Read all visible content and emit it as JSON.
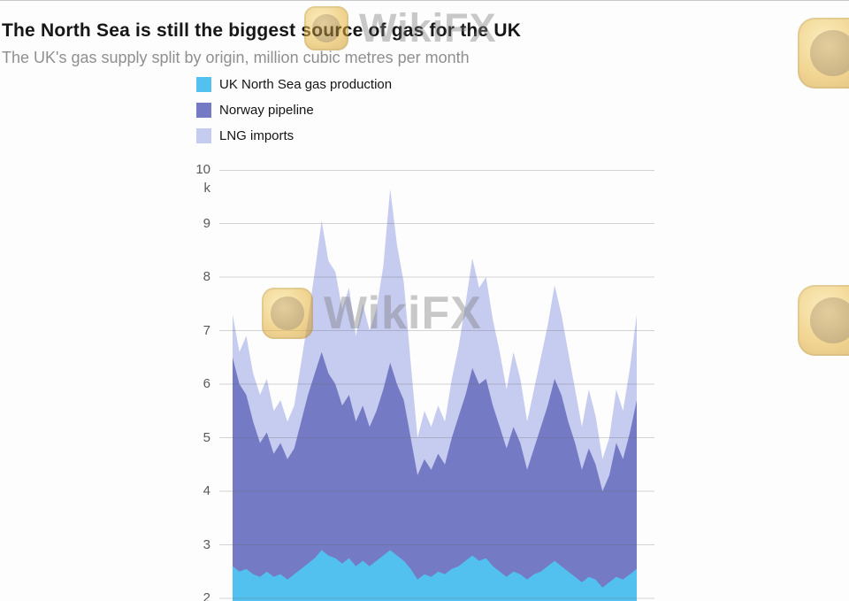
{
  "watermark": {
    "text": "WikiFX"
  },
  "legend": [
    {
      "label": "UK North Sea gas production",
      "color": "#53c1f0"
    },
    {
      "label": "Norway pipeline",
      "color": "#757ac4"
    },
    {
      "label": "LNG imports",
      "color": "#c6cbf0"
    }
  ],
  "chart_data": {
    "type": "area",
    "stacked": true,
    "title": "The North Sea is still the biggest source of gas for the UK",
    "subtitle": "The UK's gas supply split by origin, million cubic metres per month",
    "ylabel": "million cubic metres per month",
    "y_axis": {
      "ticks": [
        10,
        9,
        8,
        7,
        6,
        5,
        4,
        3,
        2
      ],
      "top_suffix": "k",
      "visible_range": [
        2,
        10
      ]
    },
    "x_axis_visible": false,
    "grid": true,
    "legend_position": "top-left",
    "series": [
      {
        "name": "UK North Sea gas production",
        "color": "#53c1f0",
        "values": [
          2.6,
          2.5,
          2.55,
          2.45,
          2.4,
          2.5,
          2.4,
          2.45,
          2.35,
          2.45,
          2.55,
          2.65,
          2.75,
          2.9,
          2.8,
          2.75,
          2.65,
          2.75,
          2.6,
          2.7,
          2.6,
          2.7,
          2.8,
          2.9,
          2.8,
          2.7,
          2.55,
          2.35,
          2.45,
          2.4,
          2.5,
          2.45,
          2.55,
          2.6,
          2.7,
          2.8,
          2.7,
          2.75,
          2.6,
          2.5,
          2.4,
          2.5,
          2.45,
          2.35,
          2.45,
          2.5,
          2.6,
          2.7,
          2.6,
          2.5,
          2.4,
          2.3,
          2.4,
          2.35,
          2.2,
          2.3,
          2.4,
          2.35,
          2.45,
          2.55
        ]
      },
      {
        "name": "Norway pipeline",
        "color": "#757ac4",
        "values": [
          3.9,
          3.5,
          3.25,
          2.85,
          2.5,
          2.6,
          2.3,
          2.45,
          2.25,
          2.35,
          2.75,
          3.15,
          3.45,
          3.7,
          3.4,
          3.25,
          2.95,
          3.05,
          2.7,
          2.9,
          2.6,
          2.8,
          3.1,
          3.5,
          3.2,
          3.0,
          2.45,
          1.95,
          2.15,
          2.0,
          2.2,
          2.05,
          2.45,
          2.8,
          3.1,
          3.5,
          3.3,
          3.35,
          3.0,
          2.7,
          2.4,
          2.7,
          2.45,
          2.05,
          2.35,
          2.7,
          3.0,
          3.4,
          3.2,
          2.8,
          2.5,
          2.1,
          2.4,
          2.15,
          1.8,
          2.0,
          2.5,
          2.25,
          2.65,
          3.15
        ]
      },
      {
        "name": "LNG imports",
        "color": "#c6cbf0",
        "values": [
          0.8,
          0.6,
          1.1,
          0.9,
          0.9,
          1.0,
          0.8,
          0.8,
          0.7,
          0.8,
          1.1,
          1.4,
          1.9,
          2.45,
          2.1,
          2.1,
          1.8,
          2.0,
          1.6,
          1.9,
          1.8,
          1.9,
          2.3,
          3.25,
          2.6,
          2.2,
          1.4,
          0.7,
          0.9,
          0.8,
          0.9,
          0.8,
          1.1,
          1.3,
          1.7,
          2.05,
          1.8,
          1.9,
          1.6,
          1.4,
          1.1,
          1.4,
          1.2,
          0.9,
          1.1,
          1.3,
          1.5,
          1.75,
          1.5,
          1.3,
          1.0,
          0.8,
          1.1,
          0.9,
          0.6,
          0.7,
          1.0,
          0.9,
          1.2,
          1.6
        ]
      }
    ]
  }
}
